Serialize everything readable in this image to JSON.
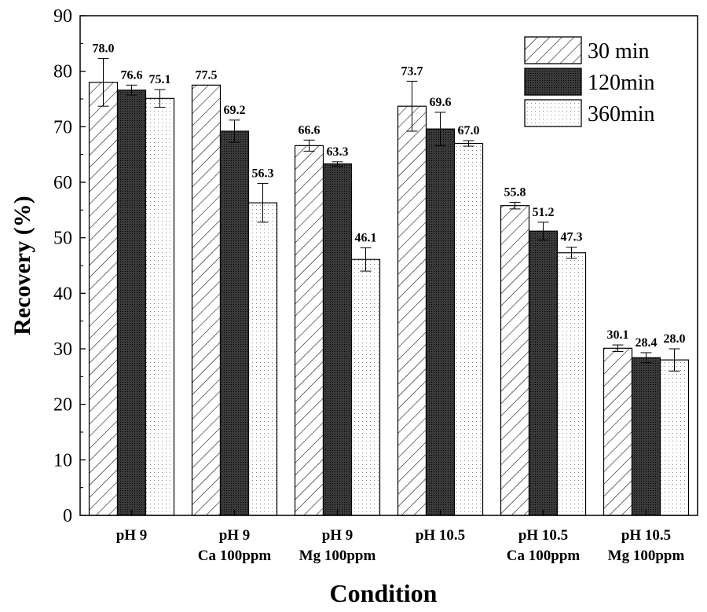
{
  "chart_data": {
    "type": "bar",
    "title": "",
    "xlabel": "Condition",
    "ylabel": "Recovery (%)",
    "ylim": [
      0,
      90
    ],
    "yticks": [
      0,
      10,
      20,
      30,
      40,
      50,
      60,
      70,
      80,
      90
    ],
    "categories": [
      [
        "pH 9"
      ],
      [
        "pH 9",
        "Ca 100ppm"
      ],
      [
        "pH 9",
        "Mg 100ppm"
      ],
      [
        "pH 10.5"
      ],
      [
        "pH 10.5",
        "Ca 100ppm"
      ],
      [
        "pH 10.5",
        "Mg 100ppm"
      ]
    ],
    "series": [
      {
        "name": "30 min",
        "pattern": "hatch",
        "values": [
          78.0,
          77.5,
          66.6,
          73.7,
          55.8,
          30.1
        ],
        "labels": [
          "78.0",
          "77.5",
          "66.6",
          "73.7",
          "55.8",
          "30.1"
        ],
        "errors": [
          4.3,
          0,
          1.0,
          4.5,
          0.6,
          0.6
        ]
      },
      {
        "name": "120min",
        "pattern": "dark-dots",
        "values": [
          76.6,
          69.2,
          63.3,
          69.6,
          51.2,
          28.4
        ],
        "labels": [
          "76.6",
          "69.2",
          "63.3",
          "69.6",
          "51.2",
          "28.4"
        ],
        "errors": [
          0.9,
          2.0,
          0.4,
          3.0,
          1.6,
          0.9
        ]
      },
      {
        "name": "360min",
        "pattern": "light-dots",
        "values": [
          75.1,
          56.3,
          46.1,
          67.0,
          47.3,
          28.0
        ],
        "labels": [
          "75.1",
          "56.3",
          "46.1",
          "67.0",
          "47.3",
          "28.0"
        ],
        "errors": [
          1.6,
          3.5,
          2.1,
          0.5,
          1.0,
          2.0
        ]
      }
    ],
    "legend_position": "top-right",
    "colors": {
      "hatch_line": "#000000",
      "dark_fill": "#3a3a3a",
      "light_fill": "#ffffff",
      "dot_dark": "#000000"
    }
  }
}
